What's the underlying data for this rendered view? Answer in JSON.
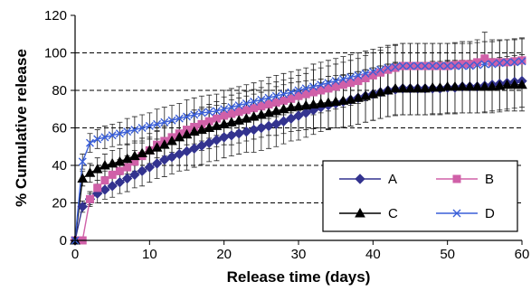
{
  "chart_data": {
    "type": "line",
    "title": "",
    "xlabel": "Release time (days)",
    "ylabel": "% Cumulative release",
    "xlim": [
      0,
      60
    ],
    "ylim": [
      0,
      120
    ],
    "xticks": [
      0,
      10,
      20,
      30,
      40,
      50,
      60
    ],
    "yticks": [
      0,
      20,
      40,
      60,
      80,
      100,
      120
    ],
    "grid": "horizontal-dashed",
    "legend_position": "bottom-right",
    "series": [
      {
        "name": "A",
        "color": "#33338f",
        "marker": "diamond",
        "x": [
          0,
          1,
          2,
          3,
          4,
          5,
          6,
          7,
          8,
          9,
          10,
          11,
          12,
          13,
          14,
          15,
          16,
          17,
          18,
          19,
          20,
          21,
          22,
          23,
          24,
          25,
          26,
          27,
          28,
          29,
          30,
          31,
          32,
          33,
          34,
          35,
          36,
          37,
          38,
          39,
          40,
          41,
          42,
          43,
          44,
          45,
          46,
          47,
          48,
          49,
          50,
          51,
          52,
          53,
          54,
          55,
          56,
          57,
          58,
          59,
          60
        ],
        "y": [
          0,
          18,
          22,
          25,
          27,
          29,
          31,
          33,
          35,
          37,
          39,
          41,
          43,
          44.5,
          46,
          47.5,
          49,
          50.5,
          52,
          53.5,
          55,
          56,
          57,
          58,
          59,
          60,
          61,
          62,
          63.5,
          65,
          66.5,
          68,
          69.5,
          71,
          72,
          73,
          74,
          75,
          76,
          77,
          78,
          79,
          80,
          80.5,
          81,
          81,
          81,
          81,
          81,
          81,
          81.5,
          81.5,
          82,
          82,
          82,
          82.5,
          83,
          83.5,
          84,
          84.5,
          85
        ],
        "errors": [
          0,
          3,
          4,
          5,
          5,
          6,
          6,
          7,
          7,
          8,
          8,
          8,
          9,
          9,
          9,
          10,
          10,
          10,
          10,
          11,
          11,
          11,
          11,
          11,
          12,
          12,
          12,
          12,
          12,
          12,
          13,
          13,
          13,
          13,
          13,
          13,
          14,
          14,
          14,
          14,
          14,
          14,
          14,
          14,
          14,
          14,
          14,
          14,
          14,
          14,
          14,
          14,
          14,
          14,
          14,
          14,
          14,
          14,
          14,
          14,
          14
        ]
      },
      {
        "name": "B",
        "color": "#d060a8",
        "marker": "square",
        "x": [
          0,
          1,
          2,
          3,
          4,
          5,
          6,
          7,
          8,
          9,
          10,
          11,
          12,
          13,
          14,
          15,
          16,
          17,
          18,
          19,
          20,
          21,
          22,
          23,
          24,
          25,
          26,
          27,
          28,
          29,
          30,
          31,
          32,
          33,
          34,
          35,
          36,
          37,
          38,
          39,
          40,
          41,
          42,
          43,
          44,
          45,
          46,
          47,
          48,
          49,
          50,
          51,
          52,
          53,
          54,
          55,
          56,
          57,
          58,
          59,
          60
        ],
        "y": [
          0,
          0,
          22,
          28,
          32,
          35,
          37,
          39,
          42,
          45,
          48,
          51,
          53,
          55,
          57,
          59,
          60.5,
          62,
          63.5,
          65,
          66.5,
          67.5,
          68.5,
          69.5,
          70.5,
          71.5,
          72.5,
          73.5,
          74.5,
          75.5,
          77,
          78,
          79,
          80,
          81,
          82,
          83,
          84,
          85,
          86.5,
          88,
          89.5,
          91,
          92,
          93,
          93,
          93,
          93,
          93,
          93,
          93,
          93.5,
          94,
          94,
          95,
          97,
          95,
          95,
          95,
          95.5,
          96
        ],
        "errors": [
          0,
          0,
          3,
          4,
          5,
          5,
          6,
          6,
          6,
          7,
          7,
          7,
          8,
          8,
          8,
          8,
          9,
          9,
          9,
          9,
          10,
          10,
          10,
          10,
          10,
          10,
          11,
          11,
          11,
          11,
          11,
          11,
          12,
          12,
          12,
          12,
          12,
          12,
          12,
          12,
          12,
          12,
          12,
          12,
          12,
          12,
          12,
          12,
          12,
          12,
          12,
          12,
          12,
          12,
          12,
          14,
          12,
          12,
          12,
          12,
          12
        ]
      },
      {
        "name": "C",
        "color": "#000000",
        "marker": "triangle",
        "x": [
          0,
          1,
          2,
          3,
          4,
          5,
          6,
          7,
          8,
          9,
          10,
          11,
          12,
          13,
          14,
          15,
          16,
          17,
          18,
          19,
          20,
          21,
          22,
          23,
          24,
          25,
          26,
          27,
          28,
          29,
          30,
          31,
          32,
          33,
          34,
          35,
          36,
          37,
          38,
          39,
          40,
          41,
          42,
          43,
          44,
          45,
          46,
          47,
          48,
          49,
          50,
          51,
          52,
          53,
          54,
          55,
          56,
          57,
          58,
          59,
          60
        ],
        "y": [
          0,
          33,
          36,
          38,
          40,
          41,
          42,
          43.5,
          45,
          46.5,
          48,
          49.5,
          51,
          53,
          55,
          56.5,
          58,
          59,
          60,
          61,
          62,
          63,
          64,
          65,
          66,
          67,
          68,
          69,
          70,
          71,
          71.5,
          72,
          72.5,
          73,
          73.5,
          74,
          74.5,
          75,
          76,
          77,
          78,
          79,
          80,
          81,
          81,
          81,
          81,
          81,
          81.5,
          81.5,
          82,
          82,
          82,
          82,
          82,
          82,
          82,
          82.5,
          83,
          83,
          83
        ],
        "errors": [
          0,
          4,
          5,
          6,
          6,
          7,
          7,
          8,
          8,
          8,
          9,
          9,
          9,
          10,
          10,
          10,
          10,
          11,
          11,
          11,
          11,
          12,
          12,
          12,
          12,
          12,
          12,
          13,
          13,
          13,
          13,
          13,
          13,
          13,
          14,
          14,
          14,
          14,
          14,
          14,
          14,
          14,
          14,
          14,
          14,
          14,
          14,
          14,
          14,
          14,
          14,
          14,
          14,
          14,
          14,
          14,
          14,
          14,
          14,
          14,
          14
        ]
      },
      {
        "name": "D",
        "color": "#3a5fd8",
        "marker": "x",
        "x": [
          0,
          1,
          2,
          3,
          4,
          5,
          6,
          7,
          8,
          9,
          10,
          11,
          12,
          13,
          14,
          15,
          16,
          17,
          18,
          19,
          20,
          21,
          22,
          23,
          24,
          25,
          26,
          27,
          28,
          29,
          30,
          31,
          32,
          33,
          34,
          35,
          36,
          37,
          38,
          39,
          40,
          41,
          42,
          43,
          44,
          45,
          46,
          47,
          48,
          49,
          50,
          51,
          52,
          53,
          54,
          55,
          56,
          57,
          58,
          59,
          60
        ],
        "y": [
          0,
          42,
          52,
          54,
          55,
          56,
          57,
          58,
          59,
          60,
          61,
          62,
          63,
          64,
          65,
          66,
          67,
          68,
          68.5,
          69,
          70,
          71,
          72,
          73,
          74,
          75,
          76,
          77,
          78,
          79,
          80,
          81,
          82,
          83,
          84,
          85,
          86,
          87,
          88,
          89,
          90,
          91,
          92,
          92.5,
          93,
          93,
          93,
          93,
          93,
          93,
          93,
          93,
          93,
          93,
          93.5,
          94,
          94,
          94.5,
          95,
          95,
          95.5
        ],
        "errors": [
          0,
          4,
          5,
          5,
          6,
          6,
          6,
          7,
          7,
          7,
          7,
          8,
          8,
          8,
          8,
          9,
          9,
          9,
          9,
          9,
          10,
          10,
          10,
          10,
          10,
          10,
          11,
          11,
          11,
          11,
          11,
          11,
          12,
          12,
          12,
          12,
          12,
          12,
          12,
          12,
          12,
          12,
          12,
          12,
          12,
          12,
          12,
          12,
          12,
          12,
          12,
          12,
          12,
          12,
          12,
          12,
          12,
          12,
          12,
          12,
          12
        ]
      }
    ]
  }
}
